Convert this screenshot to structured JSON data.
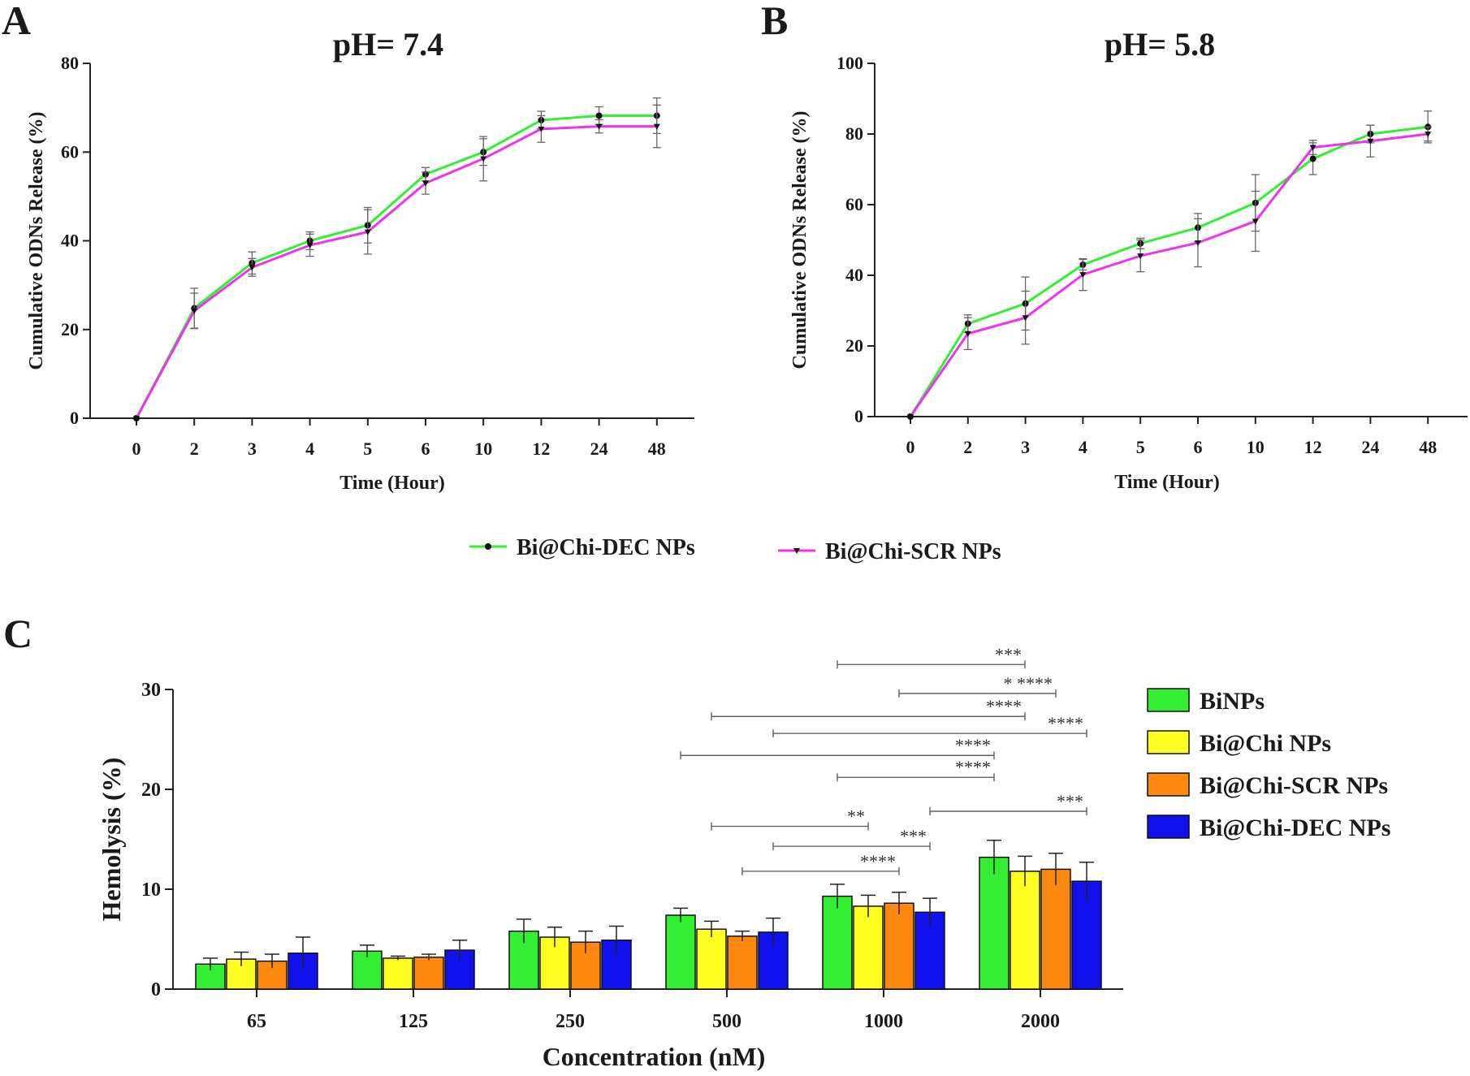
{
  "chart_data": [
    {
      "type": "line",
      "panel_label": "A",
      "title": "pH= 7.4",
      "xlabel": "Time (Hour)",
      "ylabel": "Cumulative ODNs Release (%)",
      "ylim": [
        0,
        80
      ],
      "yticks": [
        0,
        20,
        40,
        60,
        80
      ],
      "categories": [
        "0",
        "2",
        "3",
        "4",
        "5",
        "6",
        "10",
        "12",
        "24",
        "48"
      ],
      "series": [
        {
          "name": "Bi@Chi-DEC NPs",
          "color": "#33ee33",
          "marker": "circle",
          "values": [
            0,
            24.8,
            35,
            40,
            43.5,
            55,
            60,
            67.2,
            68.2,
            68.2
          ],
          "errors": [
            0,
            4.5,
            2.5,
            2,
            4,
            1.5,
            3,
            2,
            2,
            4
          ]
        },
        {
          "name": "Bi@Chi-SCR NPs",
          "color": "#ee33ee",
          "marker": "triangle-down",
          "values": [
            0,
            24.2,
            34,
            39,
            42,
            53,
            58.5,
            65.2,
            65.8,
            65.8
          ],
          "errors": [
            0,
            4,
            2,
            2.5,
            5,
            2.5,
            5,
            3,
            1.5,
            4.8
          ]
        }
      ]
    },
    {
      "type": "line",
      "panel_label": "B",
      "title": "pH= 5.8",
      "xlabel": "Time (Hour)",
      "ylabel": "Cumulative ODNs Release (%)",
      "ylim": [
        0,
        100
      ],
      "yticks": [
        0,
        20,
        40,
        60,
        80,
        100
      ],
      "categories": [
        "0",
        "2",
        "3",
        "4",
        "5",
        "6",
        "10",
        "12",
        "24",
        "48"
      ],
      "series": [
        {
          "name": "Bi@Chi-DEC NPs",
          "color": "#33ee33",
          "marker": "circle",
          "values": [
            0,
            26.3,
            32,
            43,
            49,
            53.5,
            60.5,
            73,
            80,
            82
          ],
          "errors": [
            0,
            2.5,
            7.5,
            1.5,
            1.5,
            4,
            8,
            4.5,
            2.5,
            4.5
          ]
        },
        {
          "name": "Bi@Chi-SCR NPs",
          "color": "#ee33ee",
          "marker": "triangle-down",
          "values": [
            0,
            23.5,
            28,
            40.2,
            45.5,
            49.2,
            55.3,
            76.2,
            78,
            80
          ],
          "errors": [
            0,
            4.5,
            7.5,
            4.5,
            4.5,
            6.8,
            8.5,
            2,
            4.5,
            2
          ]
        }
      ]
    },
    {
      "type": "bar",
      "panel_label": "C",
      "xlabel": "Concentration (nM)",
      "ylabel": "Hemolysis (%)",
      "ylim": [
        0,
        30
      ],
      "yticks": [
        0,
        10,
        20,
        30
      ],
      "categories": [
        "65",
        "125",
        "250",
        "500",
        "1000",
        "2000"
      ],
      "series": [
        {
          "name": "BiNPs",
          "color": "#33ee33",
          "values": [
            2.5,
            3.8,
            5.8,
            7.4,
            9.3,
            13.2
          ],
          "errors": [
            0.6,
            0.6,
            1.2,
            0.7,
            1.2,
            1.7
          ]
        },
        {
          "name": "Bi@Chi NPs",
          "color": "#ffff22",
          "values": [
            3.0,
            3.1,
            5.2,
            6.0,
            8.3,
            11.8
          ],
          "errors": [
            0.7,
            0.2,
            1.0,
            0.8,
            1.1,
            1.5
          ]
        },
        {
          "name": "Bi@Chi-SCR NPs",
          "color": "#ff8811",
          "values": [
            2.8,
            3.2,
            4.7,
            5.3,
            8.6,
            12.0
          ],
          "errors": [
            0.7,
            0.3,
            1.1,
            0.5,
            1.1,
            1.6
          ]
        },
        {
          "name": "Bi@Chi-DEC NPs",
          "color": "#1111ee",
          "values": [
            3.6,
            3.9,
            4.9,
            5.7,
            7.7,
            10.8
          ],
          "errors": [
            1.6,
            1.0,
            1.4,
            1.4,
            1.4,
            1.9
          ]
        }
      ],
      "significance": [
        {
          "label": "***",
          "from": [
            4,
            0
          ],
          "to": [
            5,
            1
          ],
          "level": 32.5
        },
        {
          "label": "* ****",
          "from": [
            4,
            2
          ],
          "to": [
            5,
            2
          ],
          "level": 29.6
        },
        {
          "label": "****",
          "from": [
            3,
            1
          ],
          "to": [
            5,
            1
          ],
          "level": 27.3
        },
        {
          "label": "****",
          "from": [
            3,
            3
          ],
          "to": [
            5,
            3
          ],
          "level": 25.6
        },
        {
          "label": "****",
          "from": [
            3,
            0
          ],
          "to": [
            5,
            0
          ],
          "level": 23.4
        },
        {
          "label": "****",
          "from": [
            4,
            0
          ],
          "to": [
            5,
            0
          ],
          "level": 21.2
        },
        {
          "label": "***",
          "from": [
            4,
            3
          ],
          "to": [
            5,
            3
          ],
          "level": 17.8
        },
        {
          "label": "**",
          "from": [
            3,
            1
          ],
          "to": [
            4,
            1
          ],
          "level": 16.3
        },
        {
          "label": "***",
          "from": [
            3,
            3
          ],
          "to": [
            4,
            3
          ],
          "level": 14.3
        },
        {
          "label": "****",
          "from": [
            3,
            2
          ],
          "to": [
            4,
            2
          ],
          "level": 11.8
        }
      ]
    }
  ]
}
